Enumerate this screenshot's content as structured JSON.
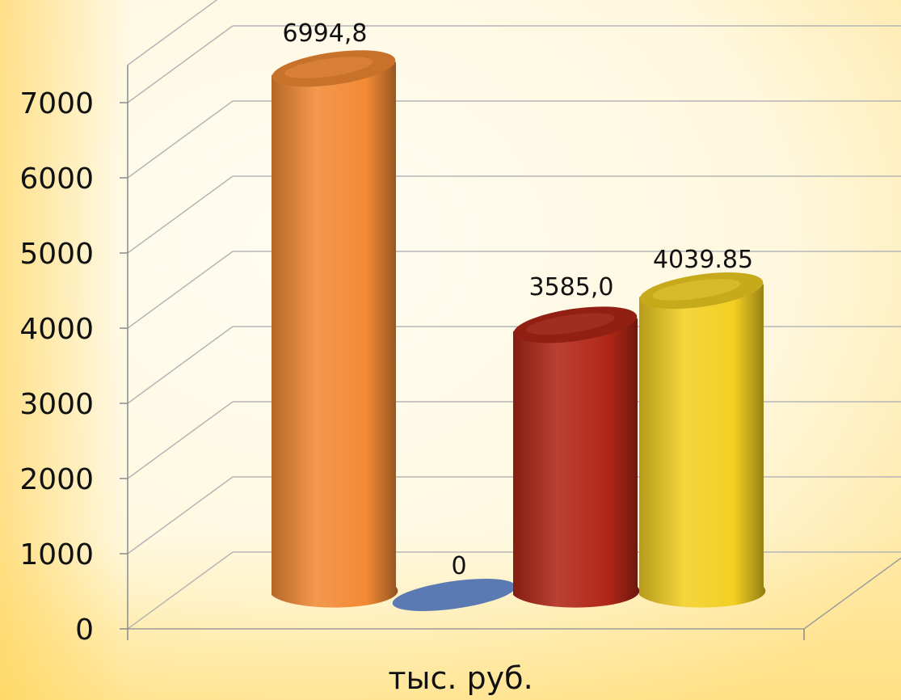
{
  "chart_data": {
    "type": "bar",
    "style": "3d-cylinder",
    "categories": [
      "",
      "",
      "",
      ""
    ],
    "series": [
      {
        "values": [
          6994.8,
          0,
          3585.0,
          4039.85
        ],
        "colors": [
          "#f38a35",
          "#5b79b2",
          "#b12717",
          "#f3cf22"
        ]
      }
    ],
    "data_labels": [
      "6994,8",
      "0",
      "3585,0",
      "4039.85"
    ],
    "y_ticks": [
      "0",
      "1000",
      "2000",
      "3000",
      "4000",
      "5000",
      "6000",
      "7000"
    ],
    "ylim": [
      0,
      7000
    ],
    "xlabel": "тыс. руб.",
    "ylabel": "",
    "title": "",
    "grid": true,
    "legend": "none"
  }
}
